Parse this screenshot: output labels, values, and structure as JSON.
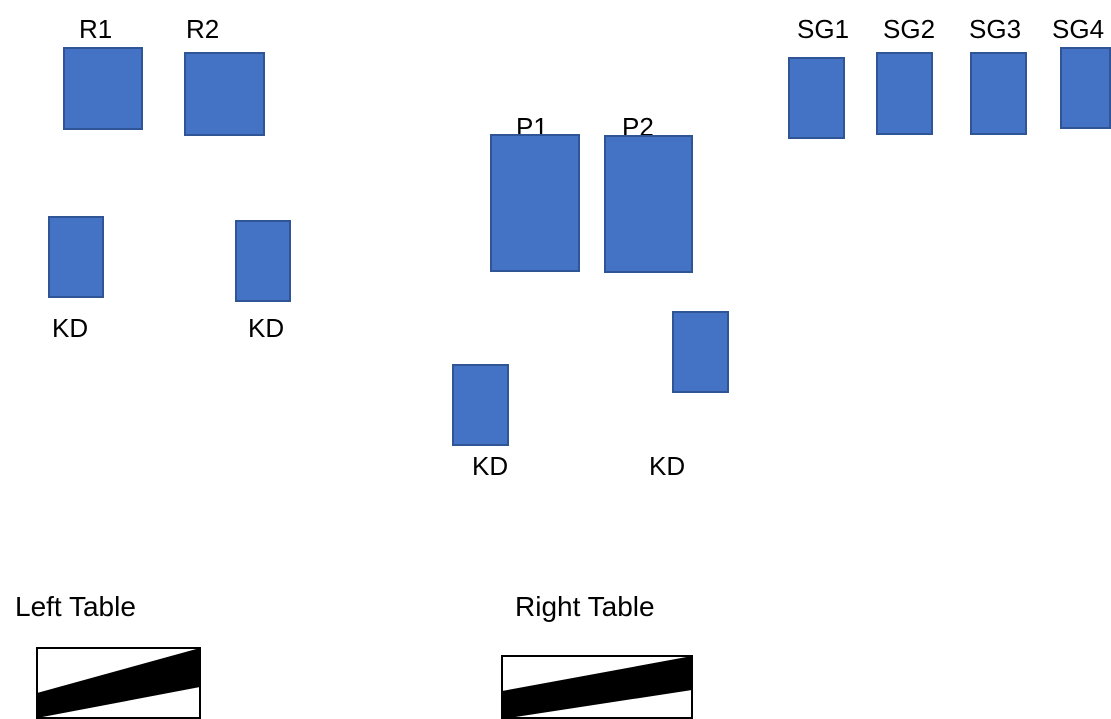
{
  "colors": {
    "box_fill": "#4472c4",
    "box_border": "#2f5597",
    "table_fill": "#000000",
    "text": "#000000"
  },
  "labels": {
    "r1": "R1",
    "r2": "R2",
    "sg1": "SG1",
    "sg2": "SG2",
    "sg3": "SG3",
    "sg4": "SG4",
    "p1": "P1",
    "p2": "P2",
    "kd_left_1": "KD",
    "kd_left_2": "KD",
    "kd_center_1": "KD",
    "kd_center_2": "KD"
  },
  "tables": {
    "left": "Left Table",
    "right": "Right Table"
  }
}
